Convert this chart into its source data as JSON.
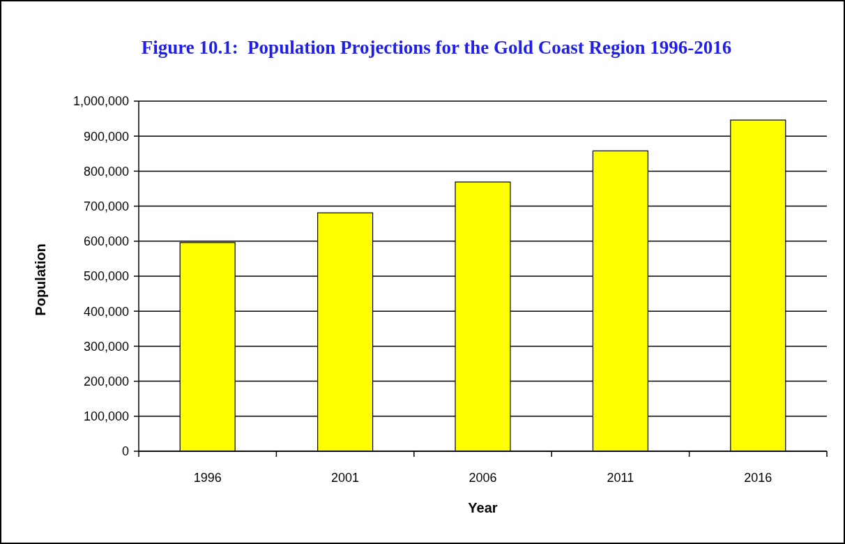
{
  "chart_data": {
    "type": "bar",
    "title": "Figure 10.1:  Population Projections for the Gold Coast Region 1996-2016",
    "xlabel": "Year",
    "ylabel": "Population",
    "categories": [
      "1996",
      "2001",
      "2006",
      "2011",
      "2016"
    ],
    "values": [
      596000,
      681000,
      769000,
      858000,
      946000
    ],
    "color": "#ffff00",
    "ylim": [
      0,
      1000000
    ],
    "yticks": [
      {
        "value": 0,
        "label": "0"
      },
      {
        "value": 100000,
        "label": "100,000"
      },
      {
        "value": 200000,
        "label": "200,000"
      },
      {
        "value": 300000,
        "label": "300,000"
      },
      {
        "value": 400000,
        "label": "400,000"
      },
      {
        "value": 500000,
        "label": "500,000"
      },
      {
        "value": 600000,
        "label": "600,000"
      },
      {
        "value": 700000,
        "label": "700,000"
      },
      {
        "value": 800000,
        "label": "800,000"
      },
      {
        "value": 900000,
        "label": "900,000"
      },
      {
        "value": 1000000,
        "label": "1,000,000"
      }
    ],
    "grid": "y"
  }
}
